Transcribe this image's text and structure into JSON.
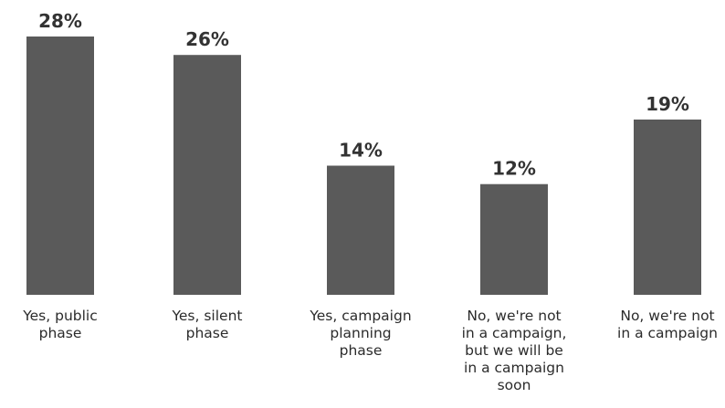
{
  "chart_data": {
    "type": "bar",
    "title": "",
    "xlabel": "",
    "ylabel": "",
    "categories": [
      [
        "Yes, public",
        "phase"
      ],
      [
        "Yes, silent",
        "phase"
      ],
      [
        "Yes, campaign",
        "planning",
        "phase"
      ],
      [
        "No, we're not",
        "in a campaign,",
        "but we will be",
        "in a campaign",
        "soon"
      ],
      [
        "No, we're not",
        "in a campaign"
      ]
    ],
    "values": [
      28,
      26,
      14,
      12,
      19
    ],
    "value_labels": [
      "28%",
      "26%",
      "14%",
      "12%",
      "19%"
    ],
    "ylim": [
      0,
      28
    ],
    "grid": false,
    "legend": false,
    "colors": {
      "bar": "#5a5a5a",
      "text": "#2b2b2b"
    }
  }
}
